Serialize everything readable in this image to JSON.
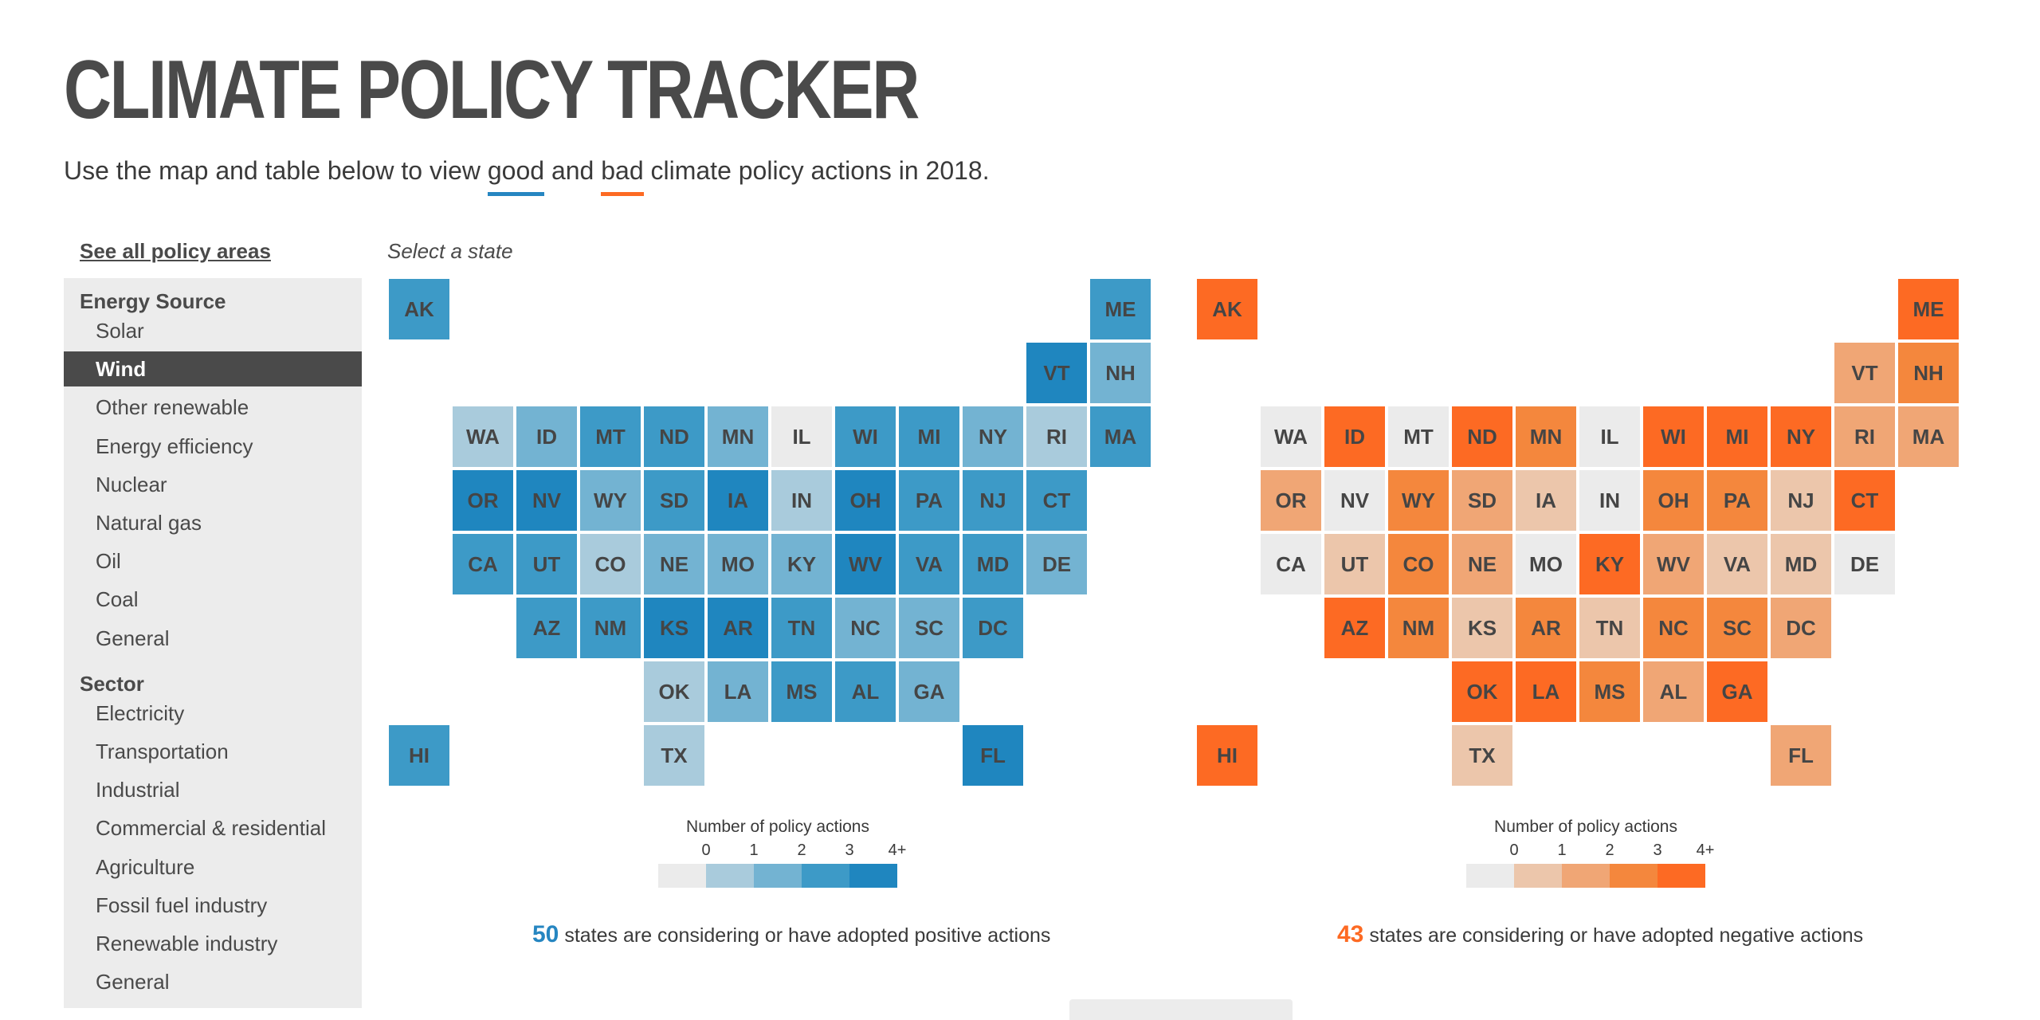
{
  "header": {
    "title": "CLIMATE POLICY TRACKER",
    "subtitle_prefix": "Use the map and table below to view ",
    "good_word": "good",
    "and_word": " and ",
    "bad_word": "bad",
    "subtitle_suffix": " climate policy actions in 2018."
  },
  "colors": {
    "good_accent": "#2686c1",
    "bad_accent": "#fd6a23",
    "good_scale": [
      "#ebebeb",
      "#a9cbdc",
      "#73b3d2",
      "#3d9ac7",
      "#1f86bf"
    ],
    "bad_scale": [
      "#ebebeb",
      "#ecc6ab",
      "#f0a675",
      "#f4873d",
      "#fd6a23"
    ]
  },
  "sidebar": {
    "see_all": "See all policy areas",
    "groups": [
      {
        "heading": "Energy Source",
        "items": [
          {
            "label": "Solar",
            "active": false
          },
          {
            "label": "Wind",
            "active": true
          },
          {
            "label": "Other renewable",
            "active": false
          },
          {
            "label": "Energy efficiency",
            "active": false
          },
          {
            "label": "Nuclear",
            "active": false
          },
          {
            "label": "Natural gas",
            "active": false
          },
          {
            "label": "Oil",
            "active": false
          },
          {
            "label": "Coal",
            "active": false
          },
          {
            "label": "General",
            "active": false
          }
        ]
      },
      {
        "heading": "Sector",
        "items": [
          {
            "label": "Electricity",
            "active": false
          },
          {
            "label": "Transportation",
            "active": false
          },
          {
            "label": "Industrial",
            "active": false
          },
          {
            "label": "Commercial & residential",
            "active": false
          },
          {
            "label": "Agriculture",
            "active": false
          },
          {
            "label": "Fossil fuel industry",
            "active": false
          },
          {
            "label": "Renewable industry",
            "active": false
          },
          {
            "label": "General",
            "active": false
          }
        ]
      }
    ]
  },
  "map_prompt": "Select a state",
  "states": [
    {
      "abbr": "AK",
      "row": 0,
      "col": 0,
      "good": 3,
      "bad": 4
    },
    {
      "abbr": "ME",
      "row": 0,
      "col": 11,
      "good": 3,
      "bad": 4
    },
    {
      "abbr": "VT",
      "row": 1,
      "col": 10,
      "good": 4,
      "bad": 2
    },
    {
      "abbr": "NH",
      "row": 1,
      "col": 11,
      "good": 2,
      "bad": 3
    },
    {
      "abbr": "WA",
      "row": 2,
      "col": 1,
      "good": 1,
      "bad": 0
    },
    {
      "abbr": "ID",
      "row": 2,
      "col": 2,
      "good": 2,
      "bad": 4
    },
    {
      "abbr": "MT",
      "row": 2,
      "col": 3,
      "good": 3,
      "bad": 0
    },
    {
      "abbr": "ND",
      "row": 2,
      "col": 4,
      "good": 3,
      "bad": 4
    },
    {
      "abbr": "MN",
      "row": 2,
      "col": 5,
      "good": 2,
      "bad": 3
    },
    {
      "abbr": "IL",
      "row": 2,
      "col": 6,
      "good": 0,
      "bad": 0
    },
    {
      "abbr": "WI",
      "row": 2,
      "col": 7,
      "good": 3,
      "bad": 4
    },
    {
      "abbr": "MI",
      "row": 2,
      "col": 8,
      "good": 3,
      "bad": 4
    },
    {
      "abbr": "NY",
      "row": 2,
      "col": 9,
      "good": 2,
      "bad": 4
    },
    {
      "abbr": "RI",
      "row": 2,
      "col": 10,
      "good": 1,
      "bad": 2
    },
    {
      "abbr": "MA",
      "row": 2,
      "col": 11,
      "good": 3,
      "bad": 2
    },
    {
      "abbr": "OR",
      "row": 3,
      "col": 1,
      "good": 4,
      "bad": 2
    },
    {
      "abbr": "NV",
      "row": 3,
      "col": 2,
      "good": 4,
      "bad": 0
    },
    {
      "abbr": "WY",
      "row": 3,
      "col": 3,
      "good": 2,
      "bad": 3
    },
    {
      "abbr": "SD",
      "row": 3,
      "col": 4,
      "good": 3,
      "bad": 2
    },
    {
      "abbr": "IA",
      "row": 3,
      "col": 5,
      "good": 4,
      "bad": 1
    },
    {
      "abbr": "IN",
      "row": 3,
      "col": 6,
      "good": 1,
      "bad": 0
    },
    {
      "abbr": "OH",
      "row": 3,
      "col": 7,
      "good": 4,
      "bad": 3
    },
    {
      "abbr": "PA",
      "row": 3,
      "col": 8,
      "good": 3,
      "bad": 3
    },
    {
      "abbr": "NJ",
      "row": 3,
      "col": 9,
      "good": 3,
      "bad": 1
    },
    {
      "abbr": "CT",
      "row": 3,
      "col": 10,
      "good": 3,
      "bad": 4
    },
    {
      "abbr": "CA",
      "row": 4,
      "col": 1,
      "good": 3,
      "bad": 0
    },
    {
      "abbr": "UT",
      "row": 4,
      "col": 2,
      "good": 3,
      "bad": 1
    },
    {
      "abbr": "CO",
      "row": 4,
      "col": 3,
      "good": 1,
      "bad": 3
    },
    {
      "abbr": "NE",
      "row": 4,
      "col": 4,
      "good": 2,
      "bad": 2
    },
    {
      "abbr": "MO",
      "row": 4,
      "col": 5,
      "good": 2,
      "bad": 0
    },
    {
      "abbr": "KY",
      "row": 4,
      "col": 6,
      "good": 2,
      "bad": 4
    },
    {
      "abbr": "WV",
      "row": 4,
      "col": 7,
      "good": 4,
      "bad": 2
    },
    {
      "abbr": "VA",
      "row": 4,
      "col": 8,
      "good": 3,
      "bad": 1
    },
    {
      "abbr": "MD",
      "row": 4,
      "col": 9,
      "good": 3,
      "bad": 1
    },
    {
      "abbr": "DE",
      "row": 4,
      "col": 10,
      "good": 2,
      "bad": 0
    },
    {
      "abbr": "AZ",
      "row": 5,
      "col": 2,
      "good": 3,
      "bad": 4
    },
    {
      "abbr": "NM",
      "row": 5,
      "col": 3,
      "good": 3,
      "bad": 3
    },
    {
      "abbr": "KS",
      "row": 5,
      "col": 4,
      "good": 4,
      "bad": 1
    },
    {
      "abbr": "AR",
      "row": 5,
      "col": 5,
      "good": 4,
      "bad": 3
    },
    {
      "abbr": "TN",
      "row": 5,
      "col": 6,
      "good": 3,
      "bad": 1
    },
    {
      "abbr": "NC",
      "row": 5,
      "col": 7,
      "good": 2,
      "bad": 3
    },
    {
      "abbr": "SC",
      "row": 5,
      "col": 8,
      "good": 2,
      "bad": 3
    },
    {
      "abbr": "DC",
      "row": 5,
      "col": 9,
      "good": 3,
      "bad": 2
    },
    {
      "abbr": "OK",
      "row": 6,
      "col": 4,
      "good": 1,
      "bad": 4
    },
    {
      "abbr": "LA",
      "row": 6,
      "col": 5,
      "good": 2,
      "bad": 4
    },
    {
      "abbr": "MS",
      "row": 6,
      "col": 6,
      "good": 3,
      "bad": 3
    },
    {
      "abbr": "AL",
      "row": 6,
      "col": 7,
      "good": 3,
      "bad": 2
    },
    {
      "abbr": "GA",
      "row": 6,
      "col": 8,
      "good": 2,
      "bad": 4
    },
    {
      "abbr": "HI",
      "row": 7,
      "col": 0,
      "good": 3,
      "bad": 4
    },
    {
      "abbr": "TX",
      "row": 7,
      "col": 4,
      "good": 1,
      "bad": 1
    },
    {
      "abbr": "FL",
      "row": 7,
      "col": 9,
      "good": 4,
      "bad": 2
    }
  ],
  "legend": {
    "title": "Number of policy actions",
    "labels": [
      "0",
      "1",
      "2",
      "3",
      "4+"
    ]
  },
  "summary": {
    "good_count": "50",
    "good_text": " states are considering or have adopted positive actions",
    "bad_count": "43",
    "bad_text": " states are considering or have adopted negative actions"
  }
}
